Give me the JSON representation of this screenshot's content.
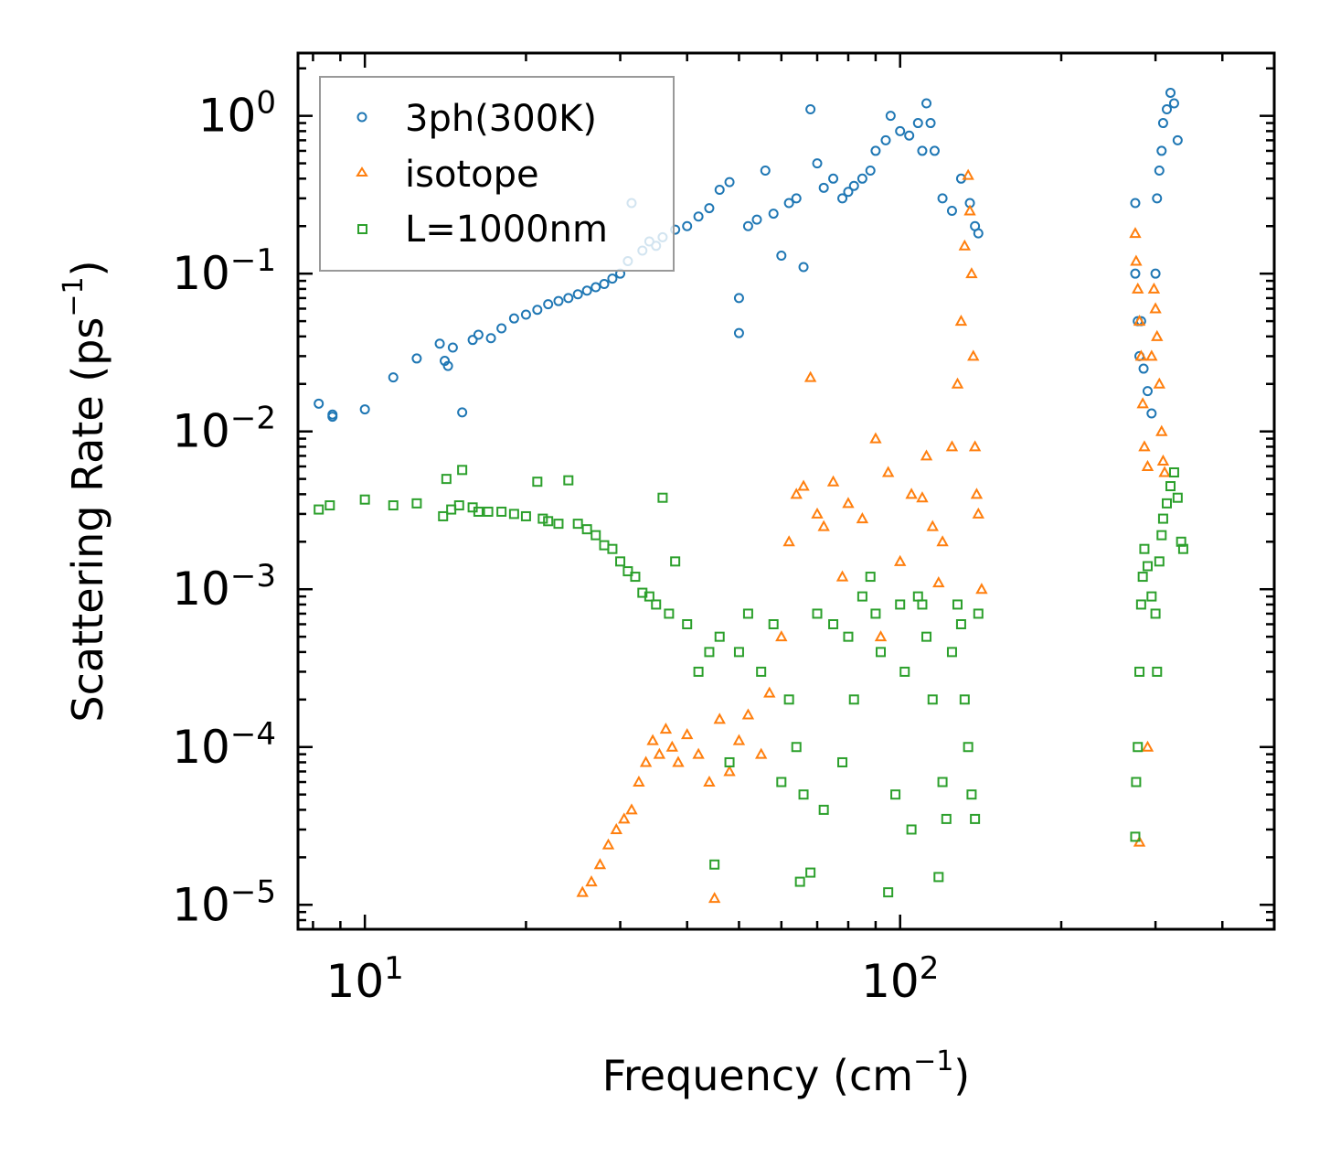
{
  "chart_data": {
    "type": "scatter",
    "title": "",
    "xlabel": {
      "base": "Frequency (cm",
      "sup": "−1",
      "tail": ")"
    },
    "ylabel": {
      "base": "Scattering Rate (ps",
      "sup": "−1",
      "tail": ")"
    },
    "xscale": "log",
    "yscale": "log",
    "xlim": [
      7.5,
      500
    ],
    "ylim": [
      7e-06,
      2.5
    ],
    "x_ticks": [
      {
        "value": 10,
        "base": "10",
        "exp": "1"
      },
      {
        "value": 100,
        "base": "10",
        "exp": "2"
      }
    ],
    "y_ticks": [
      {
        "value": 1,
        "base": "10",
        "exp": "0"
      },
      {
        "value": 0.1,
        "base": "10",
        "exp": "−1"
      },
      {
        "value": 0.01,
        "base": "10",
        "exp": "−2"
      },
      {
        "value": 0.001,
        "base": "10",
        "exp": "−3"
      },
      {
        "value": 0.0001,
        "base": "10",
        "exp": "−4"
      },
      {
        "value": 1e-05,
        "base": "10",
        "exp": "−5"
      }
    ],
    "legend_position": "top-left",
    "series": [
      {
        "name": "3ph(300K)",
        "marker": "circle",
        "color": "#1f77b4",
        "points": [
          [
            8.2,
            0.015
          ],
          [
            8.7,
            0.0128
          ],
          [
            8.7,
            0.0124
          ],
          [
            10,
            0.0138
          ],
          [
            11.3,
            0.022
          ],
          [
            12.5,
            0.029
          ],
          [
            13.8,
            0.036
          ],
          [
            14.1,
            0.028
          ],
          [
            14.3,
            0.026
          ],
          [
            14.6,
            0.034
          ],
          [
            15.2,
            0.0132
          ],
          [
            15.9,
            0.038
          ],
          [
            16.3,
            0.041
          ],
          [
            17.2,
            0.039
          ],
          [
            18,
            0.045
          ],
          [
            19,
            0.052
          ],
          [
            20,
            0.055
          ],
          [
            21,
            0.059
          ],
          [
            22,
            0.064
          ],
          [
            23,
            0.067
          ],
          [
            24,
            0.07
          ],
          [
            25,
            0.074
          ],
          [
            26,
            0.078
          ],
          [
            27,
            0.082
          ],
          [
            28,
            0.086
          ],
          [
            29,
            0.093
          ],
          [
            30,
            0.1
          ],
          [
            31,
            0.12
          ],
          [
            31.5,
            0.28
          ],
          [
            33,
            0.14
          ],
          [
            34,
            0.16
          ],
          [
            35,
            0.15
          ],
          [
            36,
            0.17
          ],
          [
            38,
            0.19
          ],
          [
            40,
            0.2
          ],
          [
            42,
            0.23
          ],
          [
            44,
            0.26
          ],
          [
            46,
            0.34
          ],
          [
            48,
            0.38
          ],
          [
            50,
            0.07
          ],
          [
            50,
            0.042
          ],
          [
            52,
            0.2
          ],
          [
            54,
            0.22
          ],
          [
            56,
            0.45
          ],
          [
            58,
            0.24
          ],
          [
            60,
            0.13
          ],
          [
            62,
            0.28
          ],
          [
            64,
            0.3
          ],
          [
            66,
            0.11
          ],
          [
            68,
            1.1
          ],
          [
            70,
            0.5
          ],
          [
            72,
            0.35
          ],
          [
            75,
            0.4
          ],
          [
            78,
            0.3
          ],
          [
            80,
            0.33
          ],
          [
            82,
            0.36
          ],
          [
            85,
            0.4
          ],
          [
            88,
            0.45
          ],
          [
            90,
            0.6
          ],
          [
            94,
            0.7
          ],
          [
            96,
            1.0
          ],
          [
            100,
            0.8
          ],
          [
            104,
            0.75
          ],
          [
            108,
            0.9
          ],
          [
            110,
            0.6
          ],
          [
            112,
            1.2
          ],
          [
            114,
            0.9
          ],
          [
            116,
            0.6
          ],
          [
            120,
            0.3
          ],
          [
            125,
            0.25
          ],
          [
            130,
            0.4
          ],
          [
            135,
            0.28
          ],
          [
            138,
            0.2
          ],
          [
            140,
            0.18
          ],
          [
            275,
            0.28
          ],
          [
            275,
            0.1
          ],
          [
            278,
            0.05
          ],
          [
            280,
            0.03
          ],
          [
            282,
            0.05
          ],
          [
            285,
            0.025
          ],
          [
            290,
            0.018
          ],
          [
            295,
            0.013
          ],
          [
            300,
            0.1
          ],
          [
            302,
            0.3
          ],
          [
            305,
            0.45
          ],
          [
            308,
            0.6
          ],
          [
            310,
            0.9
          ],
          [
            315,
            1.1
          ],
          [
            320,
            1.4
          ],
          [
            325,
            1.2
          ],
          [
            330,
            0.7
          ]
        ]
      },
      {
        "name": "isotope",
        "marker": "triangle",
        "color": "#ff7f0e",
        "points": [
          [
            25.5,
            1.2e-05
          ],
          [
            26.5,
            1.4e-05
          ],
          [
            27.5,
            1.8e-05
          ],
          [
            28.5,
            2.4e-05
          ],
          [
            29.5,
            3e-05
          ],
          [
            30.5,
            3.5e-05
          ],
          [
            31.5,
            4e-05
          ],
          [
            32.5,
            6e-05
          ],
          [
            33.5,
            8e-05
          ],
          [
            34.5,
            0.00011
          ],
          [
            35.5,
            9e-05
          ],
          [
            36.5,
            0.00013
          ],
          [
            37.5,
            0.0001
          ],
          [
            38.5,
            8e-05
          ],
          [
            40,
            0.00012
          ],
          [
            42,
            9e-05
          ],
          [
            44,
            6e-05
          ],
          [
            45,
            1.1e-05
          ],
          [
            46,
            0.00015
          ],
          [
            48,
            7e-05
          ],
          [
            50,
            0.00011
          ],
          [
            52,
            0.00016
          ],
          [
            55,
            9e-05
          ],
          [
            57,
            0.00022
          ],
          [
            60,
            0.0005
          ],
          [
            62,
            0.002
          ],
          [
            64,
            0.004
          ],
          [
            66,
            0.0045
          ],
          [
            68,
            0.022
          ],
          [
            70,
            0.003
          ],
          [
            72,
            0.0025
          ],
          [
            75,
            0.0048
          ],
          [
            78,
            0.0012
          ],
          [
            80,
            0.0035
          ],
          [
            85,
            0.0028
          ],
          [
            90,
            0.009
          ],
          [
            92,
            0.0005
          ],
          [
            95,
            0.0055
          ],
          [
            100,
            0.0015
          ],
          [
            105,
            0.004
          ],
          [
            110,
            0.0038
          ],
          [
            112,
            0.007
          ],
          [
            115,
            0.0025
          ],
          [
            118,
            0.0011
          ],
          [
            120,
            0.002
          ],
          [
            125,
            0.008
          ],
          [
            128,
            0.02
          ],
          [
            130,
            0.05
          ],
          [
            132,
            0.15
          ],
          [
            134,
            0.42
          ],
          [
            135,
            0.25
          ],
          [
            136,
            0.1
          ],
          [
            137,
            0.03
          ],
          [
            138,
            0.008
          ],
          [
            139,
            0.004
          ],
          [
            140,
            0.003
          ],
          [
            142,
            0.001
          ],
          [
            275,
            0.18
          ],
          [
            276,
            0.12
          ],
          [
            278,
            0.08
          ],
          [
            280,
            0.05
          ],
          [
            282,
            0.03
          ],
          [
            284,
            0.015
          ],
          [
            286,
            0.008
          ],
          [
            290,
            0.006
          ],
          [
            295,
            0.03
          ],
          [
            298,
            0.08
          ],
          [
            300,
            0.06
          ],
          [
            302,
            0.04
          ],
          [
            305,
            0.02
          ],
          [
            308,
            0.01
          ],
          [
            310,
            0.0065
          ],
          [
            312,
            0.0055
          ],
          [
            290,
            0.0001
          ],
          [
            280,
            2.5e-05
          ]
        ]
      },
      {
        "name": "L=1000nm",
        "marker": "square",
        "color": "#2ca02c",
        "points": [
          [
            8.2,
            0.0032
          ],
          [
            8.6,
            0.0034
          ],
          [
            10,
            0.0037
          ],
          [
            11.3,
            0.0034
          ],
          [
            12.5,
            0.0035
          ],
          [
            14,
            0.0029
          ],
          [
            14.2,
            0.005
          ],
          [
            14.5,
            0.0032
          ],
          [
            15,
            0.0034
          ],
          [
            15.2,
            0.0057
          ],
          [
            15.9,
            0.0033
          ],
          [
            16.3,
            0.0031
          ],
          [
            17,
            0.0031
          ],
          [
            18,
            0.0031
          ],
          [
            19,
            0.003
          ],
          [
            20,
            0.0029
          ],
          [
            21,
            0.0048
          ],
          [
            21.5,
            0.0028
          ],
          [
            22,
            0.0027
          ],
          [
            23,
            0.0026
          ],
          [
            24,
            0.0049
          ],
          [
            25,
            0.0026
          ],
          [
            26,
            0.0024
          ],
          [
            27,
            0.0022
          ],
          [
            28,
            0.0019
          ],
          [
            29,
            0.0018
          ],
          [
            30,
            0.0015
          ],
          [
            31,
            0.0013
          ],
          [
            32,
            0.0012
          ],
          [
            33,
            0.00095
          ],
          [
            34,
            0.0009
          ],
          [
            35,
            0.0008
          ],
          [
            36,
            0.0038
          ],
          [
            37,
            0.0007
          ],
          [
            38,
            0.0015
          ],
          [
            40,
            0.0006
          ],
          [
            42,
            0.0003
          ],
          [
            44,
            0.0004
          ],
          [
            45,
            1.8e-05
          ],
          [
            46,
            0.0005
          ],
          [
            48,
            8e-05
          ],
          [
            50,
            0.0004
          ],
          [
            52,
            0.0007
          ],
          [
            55,
            0.0003
          ],
          [
            58,
            0.0006
          ],
          [
            60,
            6e-05
          ],
          [
            62,
            0.0002
          ],
          [
            64,
            0.0001
          ],
          [
            65,
            1.4e-05
          ],
          [
            66,
            5e-05
          ],
          [
            68,
            1.6e-05
          ],
          [
            70,
            0.0007
          ],
          [
            72,
            4e-05
          ],
          [
            75,
            0.0006
          ],
          [
            78,
            8e-05
          ],
          [
            80,
            0.0005
          ],
          [
            82,
            0.0002
          ],
          [
            85,
            0.0009
          ],
          [
            88,
            0.0012
          ],
          [
            90,
            0.0007
          ],
          [
            92,
            0.0004
          ],
          [
            95,
            1.2e-05
          ],
          [
            98,
            5e-05
          ],
          [
            100,
            0.0008
          ],
          [
            102,
            0.0003
          ],
          [
            105,
            3e-05
          ],
          [
            108,
            0.0009
          ],
          [
            110,
            0.0008
          ],
          [
            112,
            0.0005
          ],
          [
            115,
            0.0002
          ],
          [
            118,
            1.5e-05
          ],
          [
            120,
            6e-05
          ],
          [
            122,
            3.5e-05
          ],
          [
            125,
            0.0004
          ],
          [
            128,
            0.0008
          ],
          [
            130,
            0.0006
          ],
          [
            132,
            0.0002
          ],
          [
            134,
            0.0001
          ],
          [
            136,
            5e-05
          ],
          [
            138,
            3.5e-05
          ],
          [
            140,
            0.0007
          ],
          [
            275,
            2.7e-05
          ],
          [
            276,
            6e-05
          ],
          [
            278,
            0.0001
          ],
          [
            280,
            0.0003
          ],
          [
            282,
            0.0008
          ],
          [
            284,
            0.0012
          ],
          [
            286,
            0.0018
          ],
          [
            290,
            0.0014
          ],
          [
            295,
            0.0009
          ],
          [
            300,
            0.0007
          ],
          [
            302,
            0.0003
          ],
          [
            305,
            0.0015
          ],
          [
            308,
            0.0022
          ],
          [
            310,
            0.0028
          ],
          [
            315,
            0.0035
          ],
          [
            320,
            0.0045
          ],
          [
            325,
            0.0055
          ],
          [
            330,
            0.0038
          ],
          [
            335,
            0.002
          ],
          [
            338,
            0.0018
          ]
        ]
      }
    ]
  }
}
